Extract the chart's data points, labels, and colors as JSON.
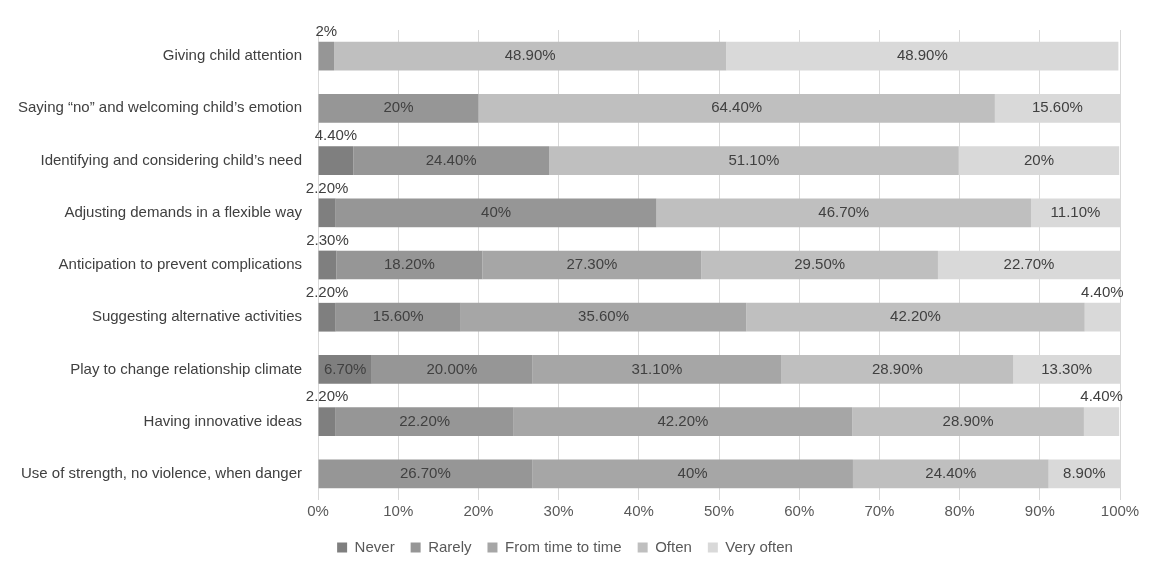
{
  "chart_data": {
    "type": "bar",
    "orientation": "horizontal",
    "stacked": true,
    "categories": [
      "Giving child attention",
      "Saying “no” and welcoming child’s emotion",
      "Identifying and considering child’s need",
      "Adjusting demands in a flexible way",
      "Anticipation to prevent complications",
      "Suggesting alternative activities",
      "Play to change relationship climate",
      "Having innovative ideas",
      "Use of strength, no violence, when danger"
    ],
    "series": [
      {
        "name": "Never",
        "color": "#7f7f7f",
        "values": [
          null,
          null,
          4.4,
          2.2,
          2.3,
          2.2,
          6.7,
          2.2,
          null
        ],
        "value_labels": [
          null,
          null,
          "4.40%",
          "2.20%",
          "2.30%",
          "2.20%",
          "6.70%",
          "2.20%",
          null
        ]
      },
      {
        "name": "Rarely",
        "color": "#969696",
        "values": [
          2,
          20,
          24.4,
          40,
          18.2,
          15.6,
          20,
          22.2,
          26.7
        ],
        "value_labels": [
          "2%",
          "20%",
          "24.40%",
          "40%",
          "18.20%",
          "15.60%",
          "20.00%",
          "22.20%",
          "26.70%"
        ]
      },
      {
        "name": "From time to time",
        "color": "#a6a6a6",
        "values": [
          null,
          null,
          null,
          null,
          27.3,
          35.6,
          31.1,
          42.2,
          40
        ],
        "value_labels": [
          null,
          null,
          null,
          null,
          "27.30%",
          "35.60%",
          "31.10%",
          "42.20%",
          "40%"
        ]
      },
      {
        "name": "Often",
        "color": "#bfbfbf",
        "values": [
          48.9,
          64.4,
          51.1,
          46.7,
          29.5,
          42.2,
          28.9,
          28.9,
          24.4
        ],
        "value_labels": [
          "48.90%",
          "64.40%",
          "51.10%",
          "46.70%",
          "29.50%",
          "42.20%",
          "28.90%",
          "28.90%",
          "24.40%"
        ]
      },
      {
        "name": "Very often",
        "color": "#d9d9d9",
        "values": [
          48.9,
          15.6,
          20,
          11.1,
          22.7,
          4.4,
          13.3,
          4.4,
          8.9
        ],
        "value_labels": [
          "48.90%",
          "15.60%",
          "20%",
          "11.10%",
          "22.70%",
          "4.40%",
          "13.30%",
          "4.40%",
          "8.90%"
        ]
      }
    ],
    "xlim": [
      0,
      100
    ],
    "xticks": [
      {
        "value": 0,
        "label": "0%"
      },
      {
        "value": 10,
        "label": "10%"
      },
      {
        "value": 20,
        "label": "20%"
      },
      {
        "value": 30,
        "label": "30%"
      },
      {
        "value": 40,
        "label": "40%"
      },
      {
        "value": 50,
        "label": "50%"
      },
      {
        "value": 60,
        "label": "60%"
      },
      {
        "value": 70,
        "label": "70%"
      },
      {
        "value": 80,
        "label": "80%"
      },
      {
        "value": 90,
        "label": "90%"
      },
      {
        "value": 100,
        "label": "100%"
      }
    ],
    "grid": "x",
    "legend": "bottom"
  }
}
